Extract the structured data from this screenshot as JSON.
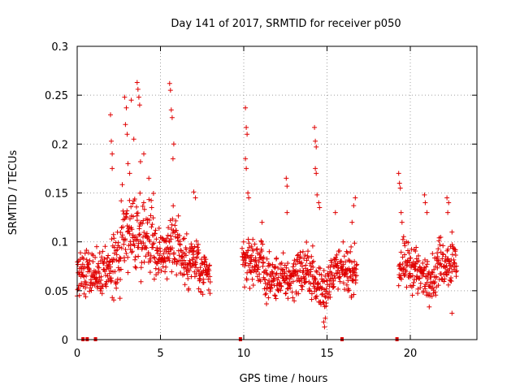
{
  "chart_data": {
    "type": "scatter",
    "title": "Day 141 of 2017, SRMTID for receiver p050",
    "xlabel": "GPS time / hours",
    "ylabel": "SRMTID / TECUs",
    "xlim": [
      0,
      24
    ],
    "ylim": [
      0,
      0.3
    ],
    "xticks": [
      0,
      5,
      10,
      15,
      20
    ],
    "xtick_labels": [
      "0",
      "5",
      "10",
      "15",
      "20"
    ],
    "yticks": [
      0,
      0.05,
      0.1,
      0.15,
      0.2,
      0.25,
      0.3
    ],
    "ytick_labels": [
      "0",
      "0.05",
      "0.1",
      "0.15",
      "0.2",
      "0.25",
      "0.3"
    ],
    "grid": true,
    "marker": "+",
    "color": "#e00000",
    "segments": [
      {
        "start": 0.0,
        "end": 2.0,
        "base": 0.066,
        "spread": 0.035
      },
      {
        "start": 2.0,
        "end": 2.6,
        "base": 0.075,
        "spread": 0.05
      },
      {
        "start": 2.6,
        "end": 4.6,
        "base": 0.11,
        "spread": 0.06
      },
      {
        "start": 4.6,
        "end": 5.6,
        "base": 0.09,
        "spread": 0.04
      },
      {
        "start": 5.6,
        "end": 6.2,
        "base": 0.1,
        "spread": 0.055
      },
      {
        "start": 6.2,
        "end": 7.3,
        "base": 0.08,
        "spread": 0.04
      },
      {
        "start": 7.3,
        "end": 8.0,
        "base": 0.065,
        "spread": 0.03
      },
      {
        "start": 9.9,
        "end": 11.2,
        "base": 0.08,
        "spread": 0.035
      },
      {
        "start": 11.2,
        "end": 13.0,
        "base": 0.062,
        "spread": 0.03
      },
      {
        "start": 13.0,
        "end": 14.2,
        "base": 0.07,
        "spread": 0.035
      },
      {
        "start": 14.2,
        "end": 15.2,
        "base": 0.055,
        "spread": 0.035
      },
      {
        "start": 15.2,
        "end": 16.8,
        "base": 0.07,
        "spread": 0.03
      },
      {
        "start": 19.3,
        "end": 20.4,
        "base": 0.075,
        "spread": 0.035
      },
      {
        "start": 20.4,
        "end": 21.6,
        "base": 0.065,
        "spread": 0.03
      },
      {
        "start": 21.6,
        "end": 22.8,
        "base": 0.08,
        "spread": 0.035
      }
    ],
    "spikes": [
      {
        "x": 2.0,
        "y": 0.23
      },
      {
        "x": 2.05,
        "y": 0.203
      },
      {
        "x": 2.1,
        "y": 0.19
      },
      {
        "x": 2.1,
        "y": 0.175
      },
      {
        "x": 2.85,
        "y": 0.248
      },
      {
        "x": 2.95,
        "y": 0.237
      },
      {
        "x": 3.0,
        "y": 0.21
      },
      {
        "x": 3.05,
        "y": 0.18
      },
      {
        "x": 3.25,
        "y": 0.245
      },
      {
        "x": 3.4,
        "y": 0.205
      },
      {
        "x": 3.6,
        "y": 0.263
      },
      {
        "x": 3.65,
        "y": 0.256
      },
      {
        "x": 3.7,
        "y": 0.248
      },
      {
        "x": 3.75,
        "y": 0.24
      },
      {
        "x": 3.8,
        "y": 0.182
      },
      {
        "x": 2.9,
        "y": 0.22
      },
      {
        "x": 3.15,
        "y": 0.17
      },
      {
        "x": 4.0,
        "y": 0.19
      },
      {
        "x": 4.3,
        "y": 0.165
      },
      {
        "x": 5.55,
        "y": 0.262
      },
      {
        "x": 5.6,
        "y": 0.255
      },
      {
        "x": 5.65,
        "y": 0.235
      },
      {
        "x": 5.7,
        "y": 0.227
      },
      {
        "x": 5.8,
        "y": 0.2
      },
      {
        "x": 5.75,
        "y": 0.185
      },
      {
        "x": 7.0,
        "y": 0.151
      },
      {
        "x": 7.1,
        "y": 0.145
      },
      {
        "x": 10.1,
        "y": 0.237
      },
      {
        "x": 10.15,
        "y": 0.217
      },
      {
        "x": 10.2,
        "y": 0.21
      },
      {
        "x": 10.1,
        "y": 0.185
      },
      {
        "x": 10.15,
        "y": 0.175
      },
      {
        "x": 10.3,
        "y": 0.145
      },
      {
        "x": 10.25,
        "y": 0.15
      },
      {
        "x": 11.1,
        "y": 0.12
      },
      {
        "x": 12.55,
        "y": 0.165
      },
      {
        "x": 12.6,
        "y": 0.157
      },
      {
        "x": 12.6,
        "y": 0.13
      },
      {
        "x": 14.25,
        "y": 0.217
      },
      {
        "x": 14.3,
        "y": 0.203
      },
      {
        "x": 14.35,
        "y": 0.197
      },
      {
        "x": 14.3,
        "y": 0.175
      },
      {
        "x": 14.35,
        "y": 0.17
      },
      {
        "x": 14.4,
        "y": 0.148
      },
      {
        "x": 14.5,
        "y": 0.14
      },
      {
        "x": 14.55,
        "y": 0.135
      },
      {
        "x": 14.8,
        "y": 0.018
      },
      {
        "x": 14.85,
        "y": 0.013
      },
      {
        "x": 14.9,
        "y": 0.022
      },
      {
        "x": 16.5,
        "y": 0.12
      },
      {
        "x": 16.6,
        "y": 0.137
      },
      {
        "x": 16.7,
        "y": 0.145
      },
      {
        "x": 15.5,
        "y": 0.13
      },
      {
        "x": 19.3,
        "y": 0.17
      },
      {
        "x": 19.35,
        "y": 0.16
      },
      {
        "x": 19.4,
        "y": 0.155
      },
      {
        "x": 19.45,
        "y": 0.13
      },
      {
        "x": 19.5,
        "y": 0.12
      },
      {
        "x": 20.85,
        "y": 0.148
      },
      {
        "x": 20.9,
        "y": 0.14
      },
      {
        "x": 21.0,
        "y": 0.13
      },
      {
        "x": 22.2,
        "y": 0.145
      },
      {
        "x": 22.3,
        "y": 0.14
      },
      {
        "x": 22.25,
        "y": 0.13
      },
      {
        "x": 22.5,
        "y": 0.11
      },
      {
        "x": 22.5,
        "y": 0.027
      }
    ],
    "zero_markers": [
      0.35,
      0.6,
      1.1,
      9.8,
      15.9,
      19.2
    ]
  }
}
